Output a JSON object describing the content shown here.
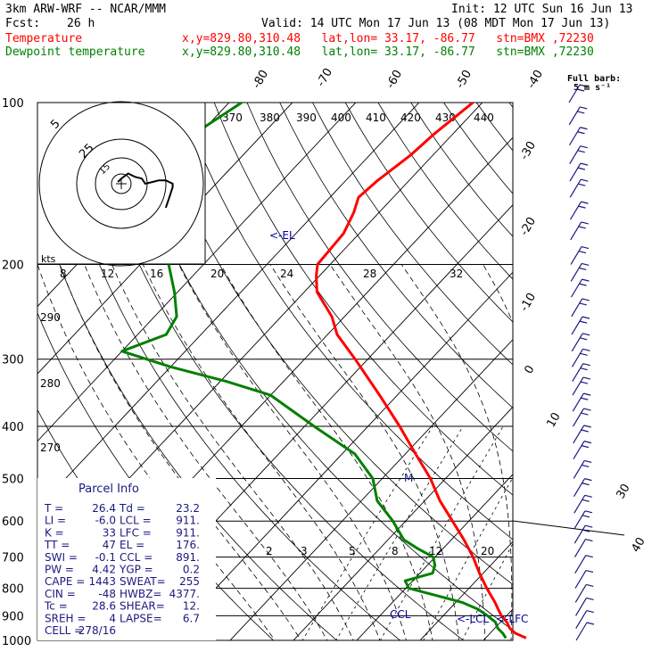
{
  "header": {
    "model": "3km ARW-WRF -- NCAR/MMM",
    "init": "Init: 12 UTC Sun 16 Jun 13",
    "fcst_label": "Fcst:",
    "fcst_value": "26 h",
    "valid": "Valid: 14 UTC Mon 17 Jun 13 (08 MDT Mon 17 Jun 13)",
    "temp_label": "Temperature",
    "dew_label": "Dewpoint temperature",
    "temp_info": "x,y=829.80,310.48   lat,lon= 33.17, -86.77   stn=BMX ,72230",
    "dew_info": "x,y=829.80,310.48   lat,lon= 33.17, -86.77   stn=BMX ,72230"
  },
  "colors": {
    "temperature": "#ff0000",
    "dewpoint": "#008000",
    "wind": "#1a1a80",
    "mixing_ratio": "#000000"
  },
  "barb_legend": {
    "line1": "Full barb:",
    "line2": "5 m s⁻¹"
  },
  "parcel_info": {
    "title": "Parcel Info",
    "rows": [
      {
        "l": "T   =",
        "lv": "26.4",
        "r": "Td =",
        "rv": "23.2"
      },
      {
        "l": "LI  =",
        "lv": "-6.0",
        "r": "LCL =",
        "rv": "911."
      },
      {
        "l": "K   =",
        "lv": "33",
        "r": "LFC =",
        "rv": "911."
      },
      {
        "l": "TT  =",
        "lv": "47",
        "r": "EL  =",
        "rv": "176."
      },
      {
        "l": "SWI =",
        "lv": "-0.1",
        "r": "CCL =",
        "rv": "891."
      },
      {
        "l": "PW  =",
        "lv": "4.42",
        "r": "YGP =",
        "rv": "0.2"
      },
      {
        "l": "CAPE =",
        "lv": "1443",
        "r": "SWEAT=",
        "rv": "255"
      },
      {
        "l": "CIN  =",
        "lv": "-48",
        "r": "HWBZ=",
        "rv": "4377."
      },
      {
        "l": "Tc  =",
        "lv": "28.6",
        "r": "SHEAR=",
        "rv": "12."
      },
      {
        "l": "SREH =",
        "lv": "4",
        "r": "LAPSE=",
        "rv": "6.7"
      },
      {
        "l": "CELL =",
        "lv": "278/16",
        "r": "",
        "rv": ""
      }
    ]
  },
  "hodograph": {
    "ring_labels": [
      "5",
      "25",
      "15"
    ],
    "units_label": "kts",
    "theta_e_labels": [
      "370",
      "380",
      "390",
      "400",
      "410",
      "420",
      "430",
      "440"
    ]
  },
  "chart_data": {
    "type": "line",
    "title": "",
    "xlabel": "",
    "ylabel": "",
    "skew_t": true,
    "y_scale": "log",
    "ylim": [
      1000,
      100
    ],
    "pressure_ticks": [
      100,
      200,
      300,
      400,
      500,
      600,
      700,
      800,
      900,
      1000
    ],
    "isotherm_labels": [
      -80,
      -70,
      -60,
      -50,
      -40,
      -30,
      -20,
      -10,
      0,
      10,
      30,
      40
    ],
    "mixing_ratio_labels_upper": [
      8,
      12,
      16,
      20,
      24,
      28,
      32
    ],
    "mixing_ratio_labels_lower": [
      2,
      3,
      5,
      8,
      12,
      20
    ],
    "theta_labels": [
      290,
      280,
      270
    ],
    "level_markers": [
      {
        "label": "<-EL",
        "p": 176
      },
      {
        "label": "CCL",
        "p": 891
      },
      {
        "label": "<-LCL",
        "p": 911
      },
      {
        "label": "<-LFC",
        "p": 911
      },
      {
        "label": "M",
        "p": 497
      }
    ],
    "series": [
      {
        "name": "Temperature",
        "p": [
          990,
          970,
          950,
          925,
          900,
          875,
          850,
          800,
          750,
          700,
          650,
          600,
          550,
          500,
          450,
          400,
          350,
          300,
          270,
          250,
          225,
          210,
          200,
          175,
          160,
          150,
          140,
          125,
          115,
          100
        ],
        "t": [
          26.4,
          24.0,
          22.4,
          21.0,
          19.2,
          17.7,
          16.2,
          12.8,
          9.4,
          6.0,
          2.0,
          -2.6,
          -7.6,
          -12.4,
          -18.4,
          -25.0,
          -32.8,
          -42.0,
          -48.5,
          -52.0,
          -58.0,
          -60.5,
          -62.0,
          -62.5,
          -64.0,
          -65.5,
          -65.0,
          -63.5,
          -63.0,
          -61.5
        ]
      },
      {
        "name": "Dewpoint temperature",
        "p": [
          990,
          970,
          950,
          925,
          900,
          875,
          850,
          800,
          775,
          750,
          725,
          700,
          675,
          650,
          600,
          550,
          500,
          450,
          400,
          350,
          330,
          310,
          290,
          270,
          250,
          225,
          200,
          175,
          160,
          145,
          125,
          115,
          100
        ],
        "t": [
          23.2,
          22.0,
          20.5,
          19.2,
          17.0,
          14.5,
          11.0,
          0.5,
          -1.2,
          2.0,
          1.2,
          -0.3,
          -4.0,
          -7.5,
          -12.0,
          -17.5,
          -21.5,
          -28.0,
          -38.5,
          -50.0,
          -59.0,
          -70.0,
          -80.0,
          -75.5,
          -76.5,
          -80.5,
          -85.5,
          -91.0,
          -95.0,
          -96.0,
          -99.0,
          -101.0,
          -98.0
        ]
      }
    ],
    "hodograph_trace": {
      "u": [
        -2,
        0,
        4,
        8,
        12,
        14,
        18,
        22,
        26,
        30,
        30,
        28,
        26
      ],
      "v": [
        1,
        3,
        6,
        4,
        3,
        0,
        1,
        2,
        2,
        0,
        -2,
        -8,
        -14
      ]
    }
  }
}
